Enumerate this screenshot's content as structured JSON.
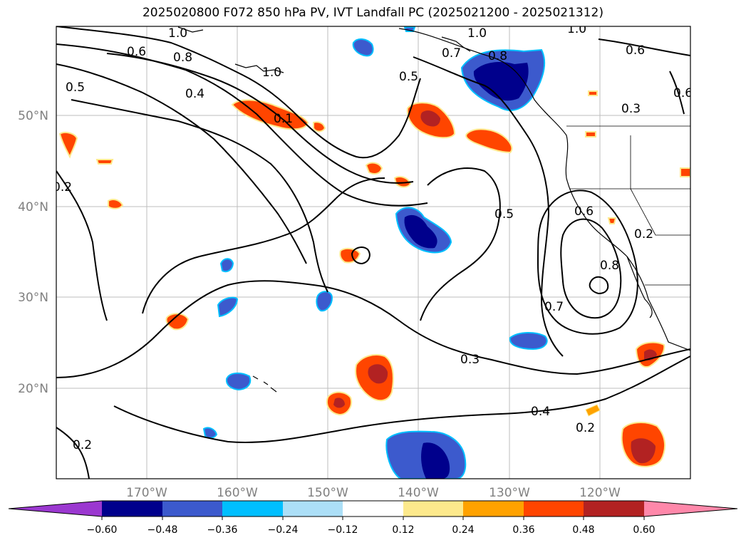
{
  "title": "2025020800 F072 850 hPa PV, IVT Landfall PC (2025021200 - 2025021312)",
  "lat_ticks": [
    "50°N",
    "40°N",
    "30°N",
    "20°N"
  ],
  "lon_ticks": [
    "170°W",
    "160°W",
    "150°W",
    "140°W",
    "130°W",
    "120°W"
  ],
  "contour_labels": [
    "1.0",
    "1.0",
    "1.0",
    "0.6",
    "0.8",
    "1.0",
    "0.5",
    "0.4",
    "0.5",
    "0.7",
    "0.8",
    "0.6",
    "0.6",
    "0.3",
    "0.2",
    "0.5",
    "0.6",
    "0.8",
    "0.2",
    "0.7",
    "0.3",
    "0.4",
    "0.2",
    "0.2",
    "0.1"
  ],
  "colorbar": {
    "ticks": [
      "−0.60",
      "−0.48",
      "−0.36",
      "−0.24",
      "−0.12",
      "0.12",
      "0.24",
      "0.36",
      "0.48",
      "0.60"
    ],
    "colors": [
      "#9b38d0",
      "#00008c",
      "#3c5acd",
      "#00bfff",
      "#acdff7",
      "#ffffff",
      "#fde98c",
      "#ffa200",
      "#ff4500",
      "#b22222",
      "#ff88aa"
    ]
  }
}
